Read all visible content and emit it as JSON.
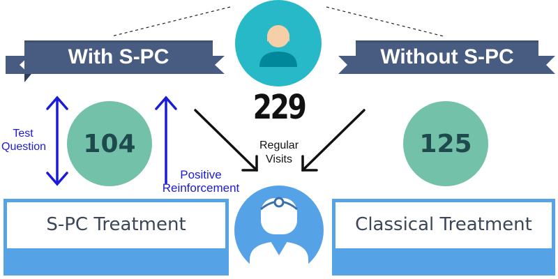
{
  "banners": {
    "with": "With S-PC",
    "without": "Without S-PC"
  },
  "counts": {
    "total": "229",
    "with": "104",
    "without": "125"
  },
  "labels": {
    "regular_visits": "Regular Visits",
    "test_question": "Test Question",
    "positive_reinforcement": "Positive Reinforcement"
  },
  "boxes": {
    "spc_treatment": "S-PC Treatment",
    "classical_treatment": "Classical Treatment"
  },
  "icons": {
    "patient": "person-icon",
    "doctor": "doctor-icon"
  },
  "colors": {
    "banner": "#475c80",
    "banner_tail": "#2f3f5c",
    "teal_circle": "#27b9c7",
    "mint_circle": "#72c1a8",
    "light_blue": "#56a2e6",
    "arrow_blue": "#1a1ad8"
  }
}
